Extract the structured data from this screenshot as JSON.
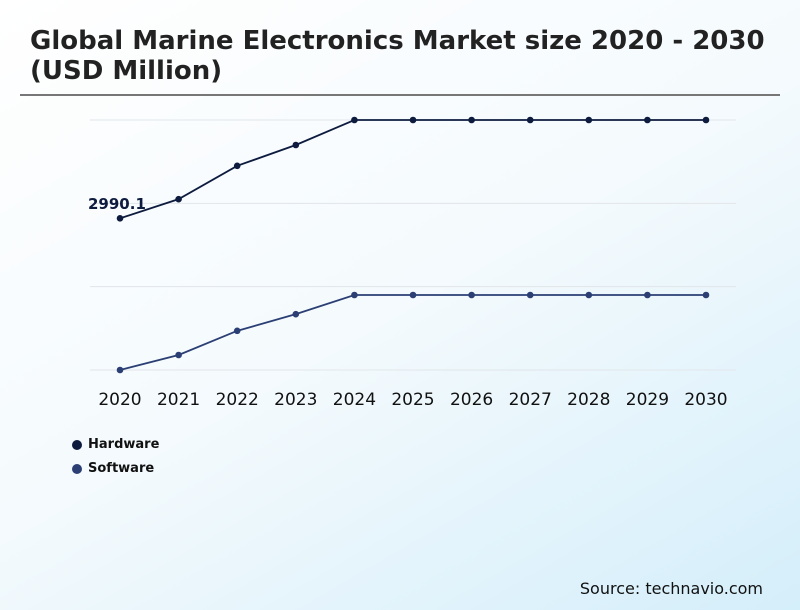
{
  "chart_data": {
    "type": "line",
    "title": "Global Marine Electronics Market size 2020 - 2030 (USD Million)",
    "x": [
      "2020",
      "2021",
      "2022",
      "2023",
      "2024",
      "2025",
      "2026",
      "2027",
      "2028",
      "2029",
      "2030"
    ],
    "series": [
      {
        "name": "Hardware",
        "color": "#0d1b3e",
        "values": [
          1.82,
          2.05,
          2.45,
          2.7,
          3.0,
          3.0,
          3.0,
          3.0,
          3.0,
          3.0,
          3.0
        ]
      },
      {
        "name": "Software",
        "color": "#2b3f74",
        "values": [
          0,
          0.18,
          0.47,
          0.67,
          0.9,
          0.9,
          0.9,
          0.9,
          0.9,
          0.9,
          0.9
        ]
      }
    ],
    "annotation": {
      "text": "2990.1",
      "series": "Hardware"
    },
    "ylim": [
      0,
      3
    ],
    "y_unit_note_hidden": false,
    "grid": true,
    "legend_position": "bottom-left"
  },
  "source": "Source: technavio.com"
}
